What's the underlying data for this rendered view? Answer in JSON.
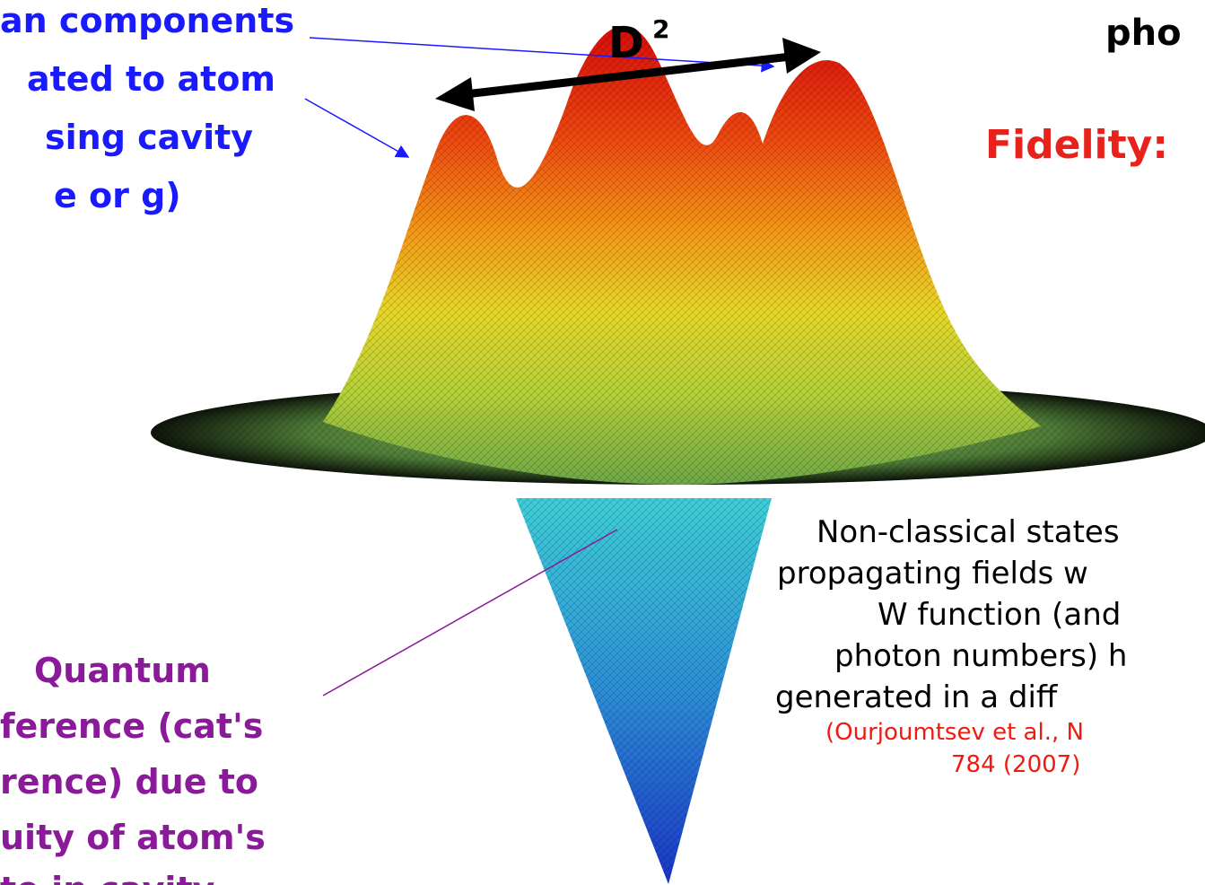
{
  "atom_note": [
    "an components",
    "ated to atom",
    "sing cavity",
    "e or g)"
  ],
  "distance_label": {
    "symbol": "D",
    "exponent": "2"
  },
  "photon_heading": "pho",
  "fidelity_label": "Fidelity:",
  "interference_note": [
    "Quantum",
    "ference  (cat's",
    "rence) due to",
    "uity of atom's",
    "te in cavity"
  ],
  "nonclassical_note": {
    "lines": [
      "Non-classical states",
      "propagating fields w",
      "W function (and",
      "photon numbers) h",
      "generated in a diff"
    ],
    "reference": [
      "(Ourjoumtsev et al., N",
      "784 (2007)"
    ]
  }
}
